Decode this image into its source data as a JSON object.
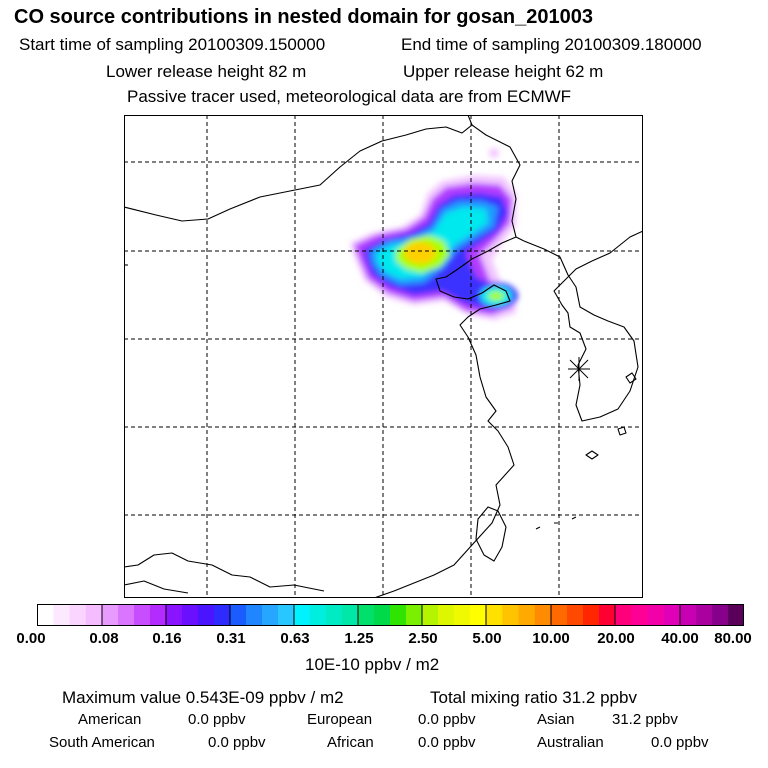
{
  "header": {
    "title": "CO  source contributions in nested domain for gosan_201003",
    "start_label": "Start time of sampling 20100309.150000",
    "end_label": "End time of sampling 20100309.180000",
    "lower_label": "Lower release height   82 m",
    "upper_label": "Upper release height   62 m",
    "tracer_note": "Passive tracer used, meteorological data are from ECMWF"
  },
  "map": {
    "receptor_marker": "asterisk-icon",
    "plume_colors": [
      "#e9a6ff",
      "#b000ff",
      "#3a2bff",
      "#00a8ff",
      "#00e8ee",
      "#a8ff00",
      "#ffd000"
    ]
  },
  "colorbar": {
    "unit": "10E-10 ppbv / m2",
    "labels": [
      "0.00",
      "0.08",
      "0.16",
      "0.31",
      "0.63",
      "1.25",
      "2.50",
      "5.00",
      "10.00",
      "20.00",
      "40.00",
      "80.00"
    ],
    "colors": [
      "#ffffff",
      "#fde9ff",
      "#fad5ff",
      "#f5bcff",
      "#e79bff",
      "#d975ff",
      "#c84dff",
      "#b32bff",
      "#8a14ff",
      "#6a10ff",
      "#4b14ff",
      "#2e2bff",
      "#1a5cff",
      "#1f86ff",
      "#26a6ff",
      "#28c7ff",
      "#00f2ff",
      "#00eee0",
      "#00ebc4",
      "#00e8a8",
      "#00e06b",
      "#00d94a",
      "#2fe400",
      "#7aef00",
      "#b5f400",
      "#dcf700",
      "#f1f900",
      "#ffff00",
      "#ffe100",
      "#ffc400",
      "#ffaa00",
      "#ff8c00",
      "#ff6a00",
      "#ff4800",
      "#ff2600",
      "#ff0033",
      "#ff007a",
      "#ff0096",
      "#f200a8",
      "#e000b8",
      "#c800b4",
      "#aa00a0",
      "#86008c",
      "#5a005a"
    ]
  },
  "stats": {
    "maximum": "Maximum value  0.543E-09 ppbv / m2",
    "total": "Total mixing ratio       31.2 ppbv",
    "regions": [
      {
        "name": "American",
        "value": "0.0 ppbv"
      },
      {
        "name": "European",
        "value": "0.0 ppbv"
      },
      {
        "name": "Asian",
        "value": "31.2 ppbv"
      },
      {
        "name": "South American",
        "value": "0.0 ppbv"
      },
      {
        "name": "African",
        "value": "0.0 ppbv"
      },
      {
        "name": "Australian",
        "value": "0.0 ppbv"
      }
    ]
  }
}
